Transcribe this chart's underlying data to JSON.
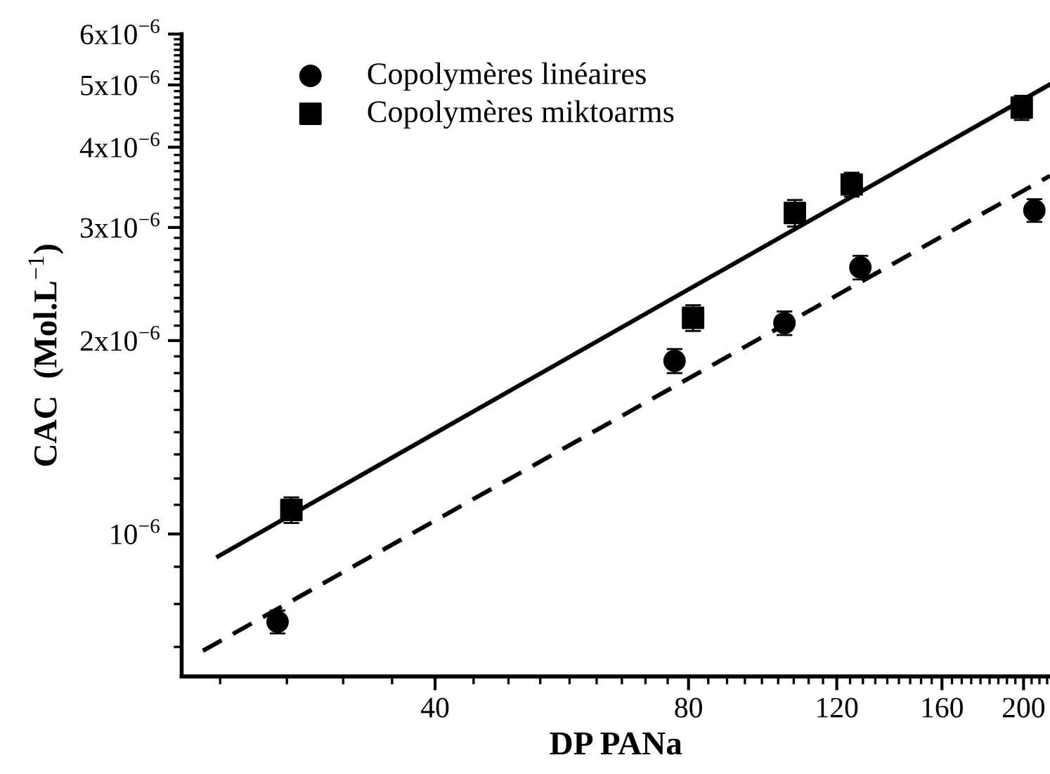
{
  "chart_data": {
    "type": "scatter",
    "xlabel": "DP PANa",
    "ylabel": "CAC  (Mol.L$^{−1}$)",
    "log": "xy",
    "legend": "top left",
    "grid": false,
    "xlim": [
      20,
      215
    ],
    "ylim": [
      6e-07,
      6e-06
    ],
    "xticks": [
      {
        "value": 22.22,
        "label": null
      },
      {
        "value": 26.67,
        "label": null
      },
      {
        "value": 31.11,
        "label": null
      },
      {
        "value": 35.56,
        "label": null
      },
      40,
      {
        "value": 44.44,
        "label": null
      },
      {
        "value": 48.89,
        "label": null
      },
      {
        "value": 53.33,
        "label": null
      },
      {
        "value": 57.78,
        "label": null
      },
      {
        "value": 62.22,
        "label": null
      },
      {
        "value": 66.67,
        "label": null
      },
      {
        "value": 71.11,
        "label": null
      },
      {
        "value": 75.56,
        "label": null
      },
      80,
      {
        "value": 84.44,
        "label": null
      },
      {
        "value": 88.89,
        "label": null
      },
      {
        "value": 93.33,
        "label": null
      },
      {
        "value": 97.78,
        "label": null
      },
      {
        "value": 102.22,
        "label": null
      },
      {
        "value": 106.67,
        "label": null
      },
      {
        "value": 111.11,
        "label": null
      },
      {
        "value": 115.56,
        "label": null
      },
      120,
      {
        "value": 124.44,
        "label": null
      },
      {
        "value": 128.89,
        "label": null
      },
      {
        "value": 133.33,
        "label": null
      },
      {
        "value": 137.78,
        "label": null
      },
      {
        "value": 142.22,
        "label": null
      },
      {
        "value": 146.67,
        "label": null
      },
      {
        "value": 151.11,
        "label": null
      },
      {
        "value": 155.56,
        "label": null
      },
      160,
      {
        "value": 164.44,
        "label": null
      },
      {
        "value": 168.89,
        "label": null
      },
      {
        "value": 173.33,
        "label": null
      },
      {
        "value": 177.78,
        "label": null
      },
      {
        "value": 182.22,
        "label": null
      },
      {
        "value": 186.67,
        "label": null
      },
      {
        "value": 191.11,
        "label": null
      },
      {
        "value": 195.56,
        "label": null
      },
      200,
      {
        "value": 204.44,
        "label": null
      },
      {
        "value": 208.89,
        "label": null
      },
      {
        "value": 213.33,
        "label": null
      }
    ],
    "yticks": [
      {
        "value": 6.67e-07,
        "label": null
      },
      {
        "value": 7.78e-07,
        "label": null
      },
      {
        "value": 8.89e-07,
        "label": null
      },
      {
        "value": 1e-06,
        "label": "10$^{−6}$"
      },
      {
        "value": 1.11e-06,
        "label": null
      },
      {
        "value": 1.22e-06,
        "label": null
      },
      {
        "value": 1.33e-06,
        "label": null
      },
      {
        "value": 1.44e-06,
        "label": null
      },
      {
        "value": 1.56e-06,
        "label": null
      },
      {
        "value": 1.67e-06,
        "label": null
      },
      {
        "value": 1.78e-06,
        "label": null
      },
      {
        "value": 1.89e-06,
        "label": null
      },
      {
        "value": 2e-06,
        "label": "2x10$^{−6}$"
      },
      {
        "value": 2.11e-06,
        "label": null
      },
      {
        "value": 2.22e-06,
        "label": null
      },
      {
        "value": 2.33e-06,
        "label": null
      },
      {
        "value": 2.44e-06,
        "label": null
      },
      {
        "value": 2.56e-06,
        "label": null
      },
      {
        "value": 2.67e-06,
        "label": null
      },
      {
        "value": 2.78e-06,
        "label": null
      },
      {
        "value": 2.89e-06,
        "label": null
      },
      {
        "value": 3e-06,
        "label": "3x10$^{−6}$"
      },
      {
        "value": 3.11e-06,
        "label": null
      },
      {
        "value": 3.22e-06,
        "label": null
      },
      {
        "value": 3.33e-06,
        "label": null
      },
      {
        "value": 3.44e-06,
        "label": null
      },
      {
        "value": 3.56e-06,
        "label": null
      },
      {
        "value": 3.67e-06,
        "label": null
      },
      {
        "value": 3.78e-06,
        "label": null
      },
      {
        "value": 3.89e-06,
        "label": null
      },
      {
        "value": 4e-06,
        "label": "4x10$^{−6}$"
      },
      {
        "value": 4.11e-06,
        "label": null
      },
      {
        "value": 4.22e-06,
        "label": null
      },
      {
        "value": 4.33e-06,
        "label": null
      },
      {
        "value": 4.44e-06,
        "label": null
      },
      {
        "value": 4.56e-06,
        "label": null
      },
      {
        "value": 4.67e-06,
        "label": null
      },
      {
        "value": 4.78e-06,
        "label": null
      },
      {
        "value": 4.89e-06,
        "label": null
      },
      {
        "value": 5e-06,
        "label": "5x10$^{−6}$"
      },
      {
        "value": 5.11e-06,
        "label": null
      },
      {
        "value": 5.22e-06,
        "label": null
      },
      {
        "value": 5.33e-06,
        "label": null
      },
      {
        "value": 5.44e-06,
        "label": null
      },
      {
        "value": 5.56e-06,
        "label": null
      },
      {
        "value": 5.67e-06,
        "label": null
      },
      {
        "value": 5.78e-06,
        "label": null
      },
      {
        "value": 5.89e-06,
        "label": null
      },
      {
        "value": 6e-06,
        "label": "6x10$^{−6}$"
      }
    ],
    "series": [
      {
        "name": "Copolymères linéaires",
        "color": "#000000",
        "marker": "circle",
        "x": [
          26,
          77,
          104,
          128,
          206
        ],
        "values": [
          7.3e-07,
          1.86e-06,
          2.13e-06,
          2.6e-06,
          3.19e-06
        ],
        "errors": [
          3e-08,
          8e-08,
          9e-08,
          1.1e-07,
          1.3e-07
        ]
      },
      {
        "name": "Copolymères miktoarms",
        "color": "#000000",
        "marker": "square",
        "x": [
          27,
          81,
          107,
          125,
          199
        ],
        "values": [
          1.09e-06,
          2.17e-06,
          3.16e-06,
          3.5e-06,
          4.61e-06
        ],
        "errors": [
          5e-08,
          1e-07,
          1.5e-07,
          1.5e-07,
          2e-07
        ]
      },
      {
        "type": "line",
        "color": "#000000",
        "line_style": "solid",
        "x": [
          22.1,
          215
        ],
        "values": [
          9.23e-07,
          5.01e-06
        ]
      },
      {
        "type": "line",
        "color": "#000000",
        "line_style": "dashed",
        "x": [
          21.2,
          215
        ],
        "values": [
          6.58e-07,
          3.61e-06
        ]
      }
    ]
  }
}
